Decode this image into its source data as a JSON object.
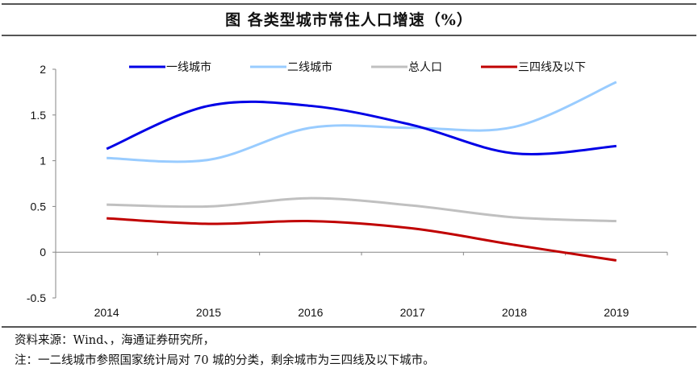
{
  "title": "图  各类型城市常住人口增速（%）",
  "source_line": "资料来源：Wind、，海通证券研究所，",
  "note_line": "注：一二线城市参照国家统计局对 70 城的分类，剩余城市为三四线及以下城市。",
  "chart_data": {
    "type": "line",
    "title": "各类型城市常住人口增速（%）",
    "xlabel": "",
    "ylabel": "",
    "categories": [
      "2014",
      "2015",
      "2016",
      "2017",
      "2018",
      "2019"
    ],
    "ylim": [
      -0.5,
      2
    ],
    "yticks": [
      2,
      1.5,
      1,
      0.5,
      0,
      -0.5
    ],
    "ytick_labels": [
      "2",
      "1.5",
      "1",
      "0.5",
      "0",
      "-0.5"
    ],
    "grid": false,
    "smooth": true,
    "legend_position": "top",
    "series": [
      {
        "name": "一线城市",
        "color": "#0000e6",
        "values": [
          1.13,
          1.6,
          1.6,
          1.39,
          1.08,
          1.16
        ]
      },
      {
        "name": "二线城市",
        "color": "#99ccff",
        "values": [
          1.03,
          1.01,
          1.36,
          1.36,
          1.37,
          1.86
        ]
      },
      {
        "name": "总人口",
        "color": "#c0c0c0",
        "values": [
          0.52,
          0.5,
          0.59,
          0.51,
          0.38,
          0.34
        ]
      },
      {
        "name": "三四线及以下",
        "color": "#c00000",
        "values": [
          0.37,
          0.31,
          0.34,
          0.26,
          0.08,
          -0.09
        ]
      }
    ]
  }
}
